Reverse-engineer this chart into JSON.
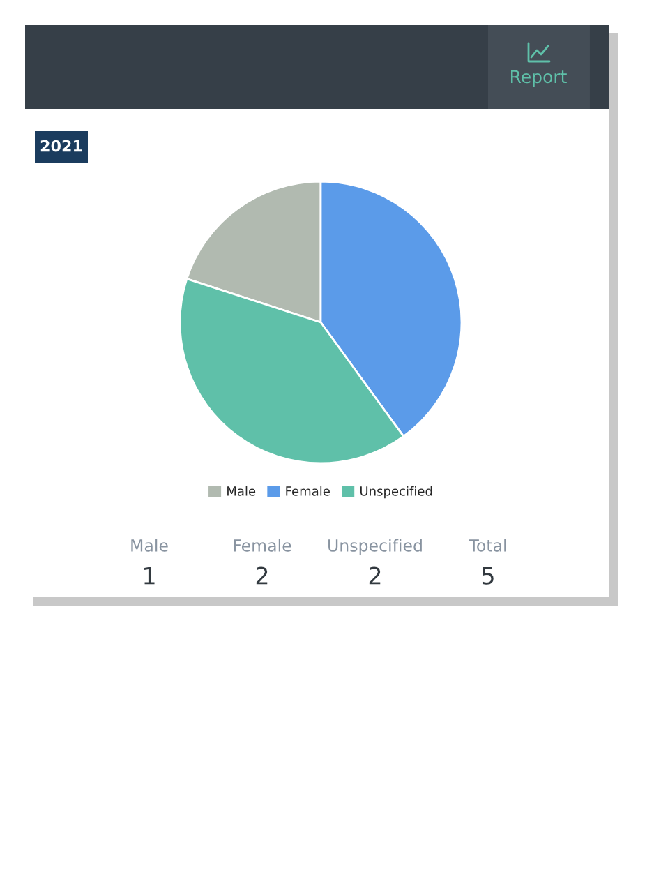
{
  "chart_data": {
    "type": "pie",
    "categories": [
      "Male",
      "Female",
      "Unspecified"
    ],
    "values": [
      20,
      40,
      40
    ],
    "colors": [
      "#b1bab0",
      "#5b9be9",
      "#5fc0a9"
    ],
    "legend": "bottom",
    "annotations": [
      "Report",
      "2021",
      "Male",
      "1",
      "Female",
      "2",
      "Unspecified",
      "2",
      "Total",
      "5"
    ]
  }
}
